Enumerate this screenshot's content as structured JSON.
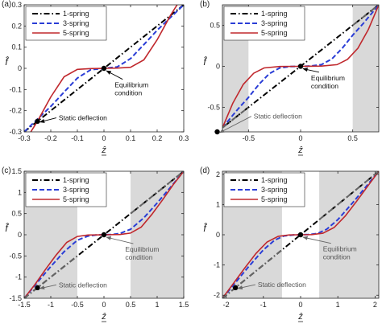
{
  "colors": {
    "one_spring": "#000000",
    "three_spring": "#2a3dd6",
    "five_spring": "#c0282d",
    "shade": "#d9d9d9",
    "grey_line": "#666666",
    "grey_text": "#555555"
  },
  "chart_data": [
    {
      "type": "line",
      "panel_label": "(a)",
      "xlabel": "ẑ",
      "ylabel": "f̂",
      "xlim": [
        -0.3,
        0.3
      ],
      "ylim": [
        -0.3,
        0.3
      ],
      "xticks": [
        -0.3,
        -0.2,
        -0.1,
        0,
        0.1,
        0.2,
        0.3
      ],
      "xticklabels": [
        "-0.3",
        "-0.2",
        "-0.1",
        "0",
        "0.1",
        "0.2",
        "0.3"
      ],
      "yticks": [
        -0.3,
        -0.2,
        -0.1,
        0,
        0.1,
        0.2,
        0.3
      ],
      "yticklabels": [
        "-0.3",
        "-0.2",
        "-0.1",
        "0",
        "0.1",
        "0.2",
        "0.3"
      ],
      "shaded_ranges": [],
      "legend": {
        "position": "top-left",
        "entries": [
          "1-spring",
          "3-spring",
          "5-spring"
        ]
      },
      "series": [
        {
          "name": "1-spring",
          "style": "dashdot",
          "x": [
            -0.3,
            0.3
          ],
          "y": [
            -0.3,
            0.3
          ]
        },
        {
          "name": "3-spring",
          "style": "dashed",
          "x": [
            -0.3,
            -0.25,
            -0.2,
            -0.15,
            -0.1,
            -0.05,
            0,
            0.05,
            0.1,
            0.15,
            0.2,
            0.25,
            0.3
          ],
          "y": [
            -0.3,
            -0.24,
            -0.18,
            -0.112,
            -0.046,
            -0.007,
            0,
            0.007,
            0.046,
            0.112,
            0.18,
            0.24,
            0.3
          ]
        },
        {
          "name": "5-spring",
          "style": "solid",
          "x": [
            -0.3,
            -0.25,
            -0.2,
            -0.15,
            -0.1,
            -0.05,
            0,
            0.05,
            0.1,
            0.15,
            0.2,
            0.25,
            0.3
          ],
          "y": [
            -0.35,
            -0.25,
            -0.135,
            -0.04,
            -0.005,
            -0.001,
            0,
            0.001,
            0.005,
            0.04,
            0.135,
            0.25,
            0.35
          ]
        }
      ],
      "markers": [
        {
          "x": 0,
          "y": 0
        },
        {
          "x": -0.25,
          "y": -0.25
        }
      ],
      "annotations": [
        {
          "text_lines": [
            "Equilibrium",
            "condition"
          ],
          "target": [
            0,
            0
          ],
          "text_at": [
            0.04,
            -0.09
          ],
          "color": "black"
        },
        {
          "text_lines": [
            "Static deflection"
          ],
          "target": [
            -0.25,
            -0.25
          ],
          "text_at": [
            -0.17,
            -0.245
          ],
          "color": "black"
        }
      ]
    },
    {
      "type": "line",
      "panel_label": "(b)",
      "xlabel": "ẑ",
      "ylabel": "f̂",
      "xlim": [
        -0.75,
        0.75
      ],
      "ylim": [
        -0.8,
        0.75
      ],
      "xticks": [
        -0.5,
        0,
        0.5
      ],
      "xticklabels": [
        "-0.5",
        "0",
        "0.5"
      ],
      "yticks": [
        -0.5,
        0,
        0.5
      ],
      "yticklabels": [
        "-0.5",
        "0",
        "0.5"
      ],
      "shaded_ranges": [
        [
          -0.75,
          -0.5
        ],
        [
          0.5,
          0.75
        ]
      ],
      "legend": {
        "position": "top-left",
        "entries": [
          "1-spring",
          "3-spring",
          "5-spring"
        ]
      },
      "series": [
        {
          "name": "1-spring",
          "style": "dashdot",
          "x": [
            -0.8,
            0.75
          ],
          "y": [
            -0.8,
            0.75
          ]
        },
        {
          "name": "3-spring",
          "style": "dashed",
          "x": [
            -0.75,
            -0.6,
            -0.5,
            -0.4,
            -0.3,
            -0.2,
            -0.1,
            0,
            0.1,
            0.2,
            0.3,
            0.4,
            0.5,
            0.6,
            0.75
          ],
          "y": [
            -0.75,
            -0.52,
            -0.38,
            -0.22,
            -0.09,
            -0.02,
            -0.003,
            0,
            0.003,
            0.02,
            0.09,
            0.22,
            0.38,
            0.52,
            0.75
          ]
        },
        {
          "name": "5-spring",
          "style": "solid",
          "x": [
            -0.75,
            -0.65,
            -0.55,
            -0.45,
            -0.35,
            -0.2,
            0,
            0.2,
            0.35,
            0.45,
            0.55,
            0.65,
            0.75
          ],
          "y": [
            -0.75,
            -0.45,
            -0.22,
            -0.085,
            -0.02,
            -0.002,
            0,
            0.002,
            0.02,
            0.085,
            0.22,
            0.45,
            0.75
          ]
        }
      ],
      "markers": [
        {
          "x": 0,
          "y": 0
        },
        {
          "x": -0.8,
          "y": -0.8
        }
      ],
      "annotations": [
        {
          "text_lines": [
            "Equilibrium",
            "condition"
          ],
          "target": [
            0,
            0
          ],
          "text_at": [
            0.1,
            -0.17
          ],
          "color": "black"
        },
        {
          "text_lines": [
            "Static deflection"
          ],
          "target": [
            -0.8,
            -0.8
          ],
          "text_at": [
            -0.45,
            -0.64
          ],
          "color": "grey"
        }
      ]
    },
    {
      "type": "line",
      "panel_label": "(c)",
      "xlabel": "ẑ",
      "ylabel": "f̂",
      "xlim": [
        -1.5,
        1.5
      ],
      "ylim": [
        -1.5,
        1.5
      ],
      "xticks": [
        -1.5,
        -1,
        -0.5,
        0,
        0.5,
        1,
        1.5
      ],
      "xticklabels": [
        "-1.5",
        "-1",
        "-0.5",
        "0",
        "0.5",
        "1",
        "1.5"
      ],
      "yticks": [
        -1.5,
        -1,
        -0.5,
        0,
        0.5,
        1,
        1.5
      ],
      "yticklabels": [
        "-1.5",
        "-1",
        "-0.5",
        "0",
        "0.5",
        "1",
        "1.5"
      ],
      "shaded_ranges": [
        [
          -1.5,
          -0.5
        ],
        [
          0.5,
          1.5
        ]
      ],
      "legend": {
        "position": "top-left",
        "entries": [
          "1-spring",
          "3-spring",
          "5-spring"
        ]
      },
      "series": [
        {
          "name": "1-spring",
          "style": "dashdot",
          "x": [
            -1.5,
            1.5
          ],
          "y": [
            -1.5,
            1.5
          ]
        },
        {
          "name": "3-spring",
          "style": "dashed",
          "x": [
            -1.5,
            -1.25,
            -1,
            -0.75,
            -0.5,
            -0.3,
            -0.15,
            0,
            0.15,
            0.3,
            0.5,
            0.75,
            1,
            1.25,
            1.5
          ],
          "y": [
            -1.5,
            -1.12,
            -0.75,
            -0.4,
            -0.13,
            -0.03,
            -0.005,
            0,
            0.005,
            0.03,
            0.13,
            0.4,
            0.75,
            1.12,
            1.5
          ]
        },
        {
          "name": "5-spring",
          "style": "solid",
          "x": [
            -1.5,
            -1.3,
            -1.1,
            -0.9,
            -0.7,
            -0.5,
            -0.3,
            0,
            0.3,
            0.5,
            0.7,
            0.9,
            1.1,
            1.3,
            1.5
          ],
          "y": [
            -1.5,
            -1.18,
            -0.82,
            -0.48,
            -0.18,
            -0.04,
            -0.005,
            0,
            0.005,
            0.04,
            0.18,
            0.48,
            0.82,
            1.18,
            1.5
          ]
        }
      ],
      "markers": [
        {
          "x": 0,
          "y": 0
        },
        {
          "x": -1.25,
          "y": -1.25
        }
      ],
      "annotations": [
        {
          "text_lines": [
            "Equilibrium",
            "condition"
          ],
          "target": [
            0,
            0
          ],
          "text_at": [
            0.4,
            -0.4
          ],
          "color": "grey"
        },
        {
          "text_lines": [
            "Static deflection"
          ],
          "target": [
            -1.25,
            -1.25
          ],
          "text_at": [
            -0.85,
            -1.24
          ],
          "color": "grey"
        }
      ]
    },
    {
      "type": "line",
      "panel_label": "(d)",
      "xlabel": "ẑ",
      "ylabel": "f̂",
      "xlim": [
        -2.1,
        2.1
      ],
      "ylim": [
        -2.1,
        2.1
      ],
      "xticks": [
        -2,
        -1,
        0,
        1,
        2
      ],
      "xticklabels": [
        "-2",
        "-1",
        "0",
        "1",
        "2"
      ],
      "yticks": [
        -2,
        -1,
        0,
        1,
        2
      ],
      "yticklabels": [
        "-2",
        "-1",
        "0",
        "1",
        "2"
      ],
      "shaded_ranges": [
        [
          -2.1,
          -0.5
        ],
        [
          0.5,
          2.1
        ]
      ],
      "legend": {
        "position": "top-left",
        "entries": [
          "1-spring",
          "3-spring",
          "5-spring"
        ]
      },
      "series": [
        {
          "name": "1-spring",
          "style": "dashdot",
          "x": [
            -2.1,
            2.1
          ],
          "y": [
            -2.1,
            2.1
          ]
        },
        {
          "name": "3-spring",
          "style": "dashed",
          "x": [
            -2.1,
            -1.75,
            -1.4,
            -1,
            -0.7,
            -0.45,
            -0.2,
            0,
            0.2,
            0.45,
            0.7,
            1,
            1.4,
            1.75,
            2.1
          ],
          "y": [
            -2.1,
            -1.58,
            -1.06,
            -0.5,
            -0.18,
            -0.04,
            -0.004,
            0,
            0.004,
            0.04,
            0.18,
            0.5,
            1.06,
            1.58,
            2.1
          ]
        },
        {
          "name": "5-spring",
          "style": "solid",
          "x": [
            -2.1,
            -1.8,
            -1.5,
            -1.2,
            -0.9,
            -0.6,
            -0.3,
            0,
            0.3,
            0.6,
            0.9,
            1.2,
            1.5,
            1.8,
            2.1
          ],
          "y": [
            -2.1,
            -1.6,
            -1.1,
            -0.62,
            -0.24,
            -0.05,
            -0.005,
            0,
            0.005,
            0.05,
            0.24,
            0.62,
            1.1,
            1.6,
            2.1
          ]
        }
      ],
      "markers": [
        {
          "x": 0,
          "y": 0
        },
        {
          "x": -1.75,
          "y": -1.75
        }
      ],
      "annotations": [
        {
          "text_lines": [
            "Equilibrium",
            "condition"
          ],
          "target": [
            0,
            0
          ],
          "text_at": [
            0.6,
            -0.55
          ],
          "color": "grey"
        },
        {
          "text_lines": [
            "Static deflection"
          ],
          "target": [
            -1.75,
            -1.75
          ],
          "text_at": [
            -1.15,
            -1.73
          ],
          "color": "grey"
        }
      ]
    }
  ]
}
